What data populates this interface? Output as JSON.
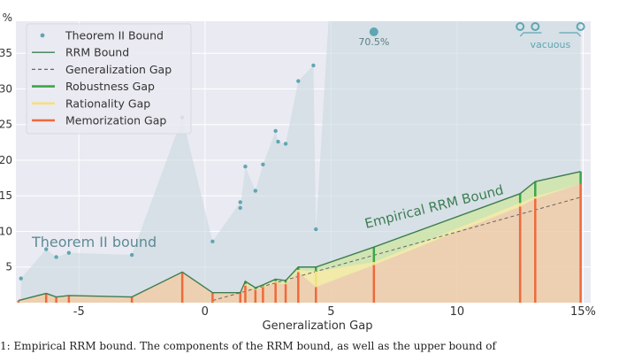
{
  "chart_data": {
    "type": "line",
    "xlabel": "Generalization Gap",
    "x_ticks": [
      "-5",
      "0",
      "5",
      "10",
      "15%"
    ],
    "y_ticks": [
      "%",
      "35",
      "30",
      "25",
      "20",
      "15",
      "10",
      "5"
    ],
    "xlim": [
      -7.5,
      15.3
    ],
    "ylim": [
      0,
      39.5
    ],
    "grid": true,
    "legend_placement": "top-left",
    "legend": [
      {
        "label": "Theorem II Bound",
        "kind": "dot",
        "color": "#5fa6b3"
      },
      {
        "label": "RRM Bound",
        "kind": "line",
        "color": "#3e7d53"
      },
      {
        "label": "Generalization Gap",
        "kind": "dashed",
        "color": "#666666"
      },
      {
        "label": "Robustness Gap",
        "kind": "thick",
        "color": "#3ca54a"
      },
      {
        "label": "Rationality Gap",
        "kind": "thick",
        "color": "#f7df7a"
      },
      {
        "label": "Memorization Gap",
        "kind": "thick",
        "color": "#ee6a3b"
      }
    ],
    "annotations": {
      "theorem_region_label": "Theorem II bound",
      "empirical_label": "Empirical RRM Bound",
      "off_scale_value": "70.5%",
      "vacuous_label": "vacuous"
    },
    "theorem_points": [
      [
        -7.3,
        3.4
      ],
      [
        -6.3,
        7.5
      ],
      [
        -5.9,
        6.4
      ],
      [
        -5.4,
        7.0
      ],
      [
        -2.9,
        6.7
      ],
      [
        -0.9,
        26.0
      ],
      [
        0.3,
        8.6
      ],
      [
        1.4,
        14.1
      ],
      [
        1.4,
        13.3
      ],
      [
        1.6,
        19.1
      ],
      [
        2.0,
        15.7
      ],
      [
        2.3,
        19.4
      ],
      [
        2.8,
        24.1
      ],
      [
        2.9,
        22.6
      ],
      [
        3.2,
        22.3
      ],
      [
        3.7,
        31.1
      ],
      [
        4.3,
        33.3
      ],
      [
        4.4,
        10.3
      ]
    ],
    "off_scale_points": [
      {
        "x": 6.7,
        "label": "70.5%"
      },
      {
        "x": 12.5,
        "label": "vacuous"
      },
      {
        "x": 13.1,
        "label": "vacuous"
      },
      {
        "x": 14.9,
        "label": "vacuous"
      }
    ],
    "rrm_bound": [
      {
        "x": -7.4,
        "y": 0.3,
        "robustness": 0.0,
        "rationality": 0.0,
        "memorization": 0.3
      },
      {
        "x": -6.3,
        "y": 1.3,
        "robustness": 0.0,
        "rationality": 0.0,
        "memorization": 1.3
      },
      {
        "x": -5.9,
        "y": 0.8,
        "robustness": 0.0,
        "rationality": 0.0,
        "memorization": 0.8
      },
      {
        "x": -5.4,
        "y": 1.0,
        "robustness": 0.0,
        "rationality": 0.0,
        "memorization": 1.0
      },
      {
        "x": -2.9,
        "y": 0.8,
        "robustness": 0.0,
        "rationality": 0.0,
        "memorization": 0.8
      },
      {
        "x": -0.9,
        "y": 4.3,
        "robustness": 0.0,
        "rationality": 0.0,
        "memorization": 4.3
      },
      {
        "x": 0.3,
        "y": 1.4,
        "robustness": 0.0,
        "rationality": 0.0,
        "memorization": 1.4
      },
      {
        "x": 1.4,
        "y": 1.4,
        "robustness": 0.0,
        "rationality": 0.0,
        "memorization": 1.4
      },
      {
        "x": 1.6,
        "y": 3.0,
        "robustness": 0.4,
        "rationality": 0.2,
        "memorization": 2.4
      },
      {
        "x": 2.0,
        "y": 2.1,
        "robustness": 0.2,
        "rationality": 0.1,
        "memorization": 1.8
      },
      {
        "x": 2.3,
        "y": 2.5,
        "robustness": 0.2,
        "rationality": 0.1,
        "memorization": 2.2
      },
      {
        "x": 2.8,
        "y": 3.3,
        "robustness": 0.3,
        "rationality": 0.2,
        "memorization": 2.8
      },
      {
        "x": 3.2,
        "y": 3.1,
        "robustness": 0.3,
        "rationality": 0.2,
        "memorization": 2.6
      },
      {
        "x": 3.7,
        "y": 5.0,
        "robustness": 0.4,
        "rationality": 0.3,
        "memorization": 4.3
      },
      {
        "x": 4.4,
        "y": 5.0,
        "robustness": 0.6,
        "rationality": 2.2,
        "memorization": 2.2
      },
      {
        "x": 6.7,
        "y": 7.8,
        "robustness": 2.1,
        "rationality": 0.4,
        "memorization": 5.3
      },
      {
        "x": 12.5,
        "y": 15.3,
        "robustness": 1.3,
        "rationality": 0.5,
        "memorization": 13.5
      },
      {
        "x": 13.1,
        "y": 17.0,
        "robustness": 2.1,
        "rationality": 0.3,
        "memorization": 14.6
      },
      {
        "x": 14.9,
        "y": 18.4,
        "robustness": 1.7,
        "rationality": 0.0,
        "memorization": 16.7
      }
    ],
    "generalization_gap_line": [
      [
        0.3,
        0.3
      ],
      [
        14.9,
        14.8
      ]
    ]
  },
  "caption": "1: Empirical RRM bound. The components of the RRM bound, as well as the upper bound of"
}
